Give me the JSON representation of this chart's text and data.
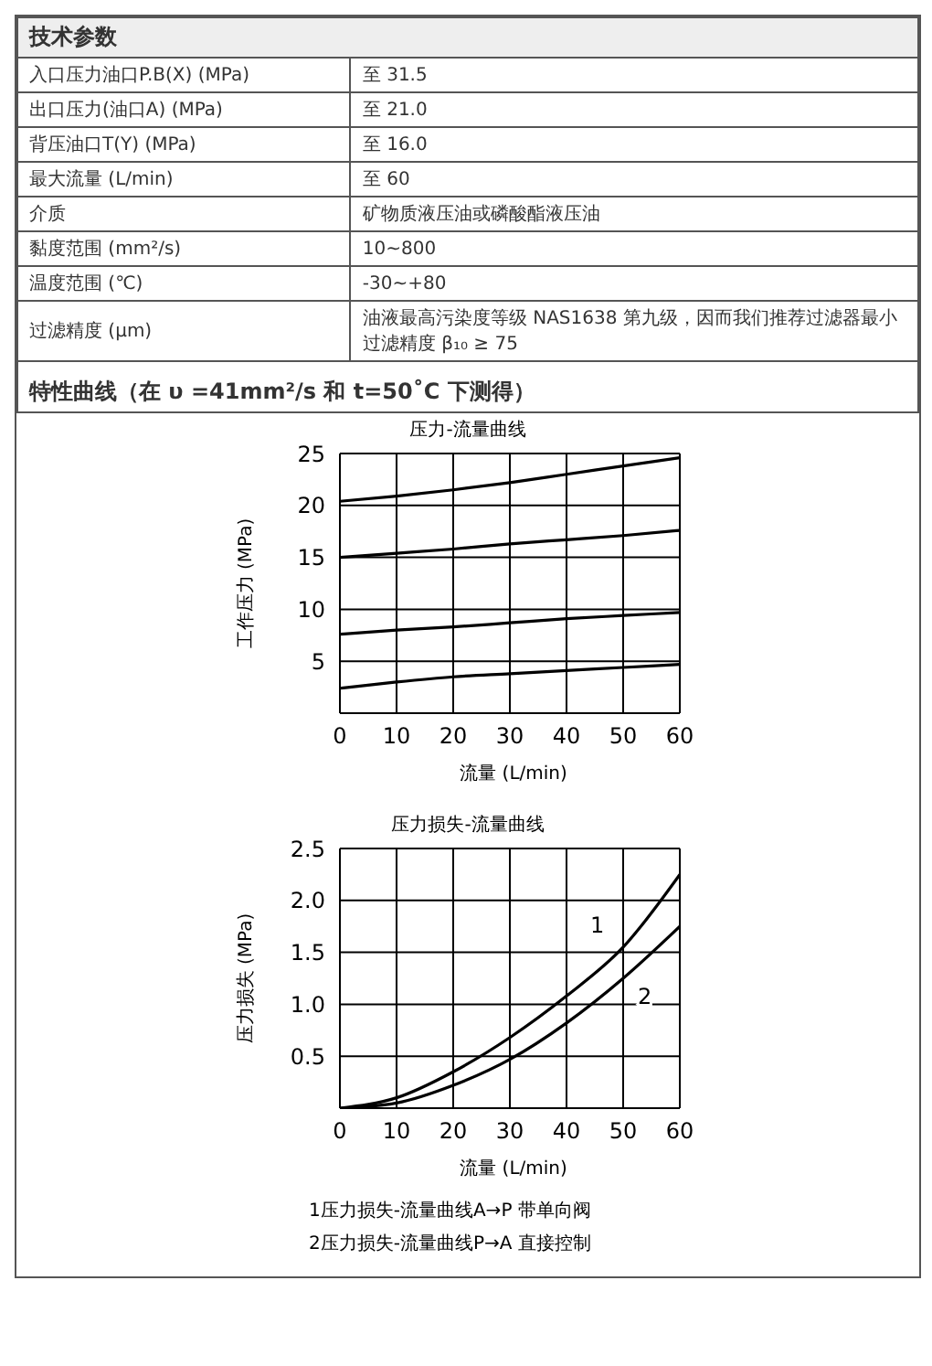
{
  "chart_data": [
    {
      "type": "other",
      "title": "技术参数",
      "annotations": [
        "入口压力油口P.B(X)  (MPa)",
        "至 31.5",
        "出口压力(油口A)  (MPa)",
        "至 21.0",
        "背压油口T(Y)  (MPa)",
        "至 16.0",
        "最大流量  (L/min)",
        "至 60",
        "介质",
        "矿物质液压油或磷酸酯液压油",
        "黏度范围  (mm²/s)",
        "10~800",
        "温度范围  (℃)",
        "-30~+80",
        "过滤精度  (μm)",
        "油液最高污染度等级 NAS1638 第九级，因而我们推荐过滤器最小过滤精度 β₁₀ ≥ 75",
        "特性曲线（在 υ =41mm²/s 和 t=50˚C 下测得）"
      ]
    },
    {
      "type": "line",
      "title": "压力-流量曲线",
      "xlabel": "流量 (L/min)",
      "ylabel": "工作压力 (MPa)",
      "x": [
        0,
        10,
        20,
        30,
        40,
        50,
        60
      ],
      "xlim": [
        0,
        60
      ],
      "xticks": [
        0,
        10,
        20,
        30,
        40,
        50,
        60
      ],
      "ylim": [
        0,
        25
      ],
      "yticks": [
        5,
        10,
        15,
        20,
        25
      ],
      "grid": true,
      "series": [
        {
          "color": "#000000",
          "values": [
            20.4,
            20.9,
            21.5,
            22.2,
            23.0,
            23.8,
            24.6
          ]
        },
        {
          "color": "#000000",
          "values": [
            15.0,
            15.4,
            15.8,
            16.3,
            16.7,
            17.1,
            17.6
          ]
        },
        {
          "color": "#000000",
          "values": [
            7.6,
            8.0,
            8.3,
            8.7,
            9.1,
            9.4,
            9.7
          ]
        },
        {
          "color": "#000000",
          "values": [
            2.4,
            3.0,
            3.5,
            3.8,
            4.1,
            4.4,
            4.7
          ]
        }
      ]
    },
    {
      "type": "line",
      "title": "压力损失-流量曲线",
      "xlabel": "流量 (L/min)",
      "ylabel": "压力损失 (MPa)",
      "x": [
        0,
        10,
        20,
        30,
        40,
        50,
        60
      ],
      "xlim": [
        0,
        60
      ],
      "xticks": [
        0,
        10,
        20,
        30,
        40,
        50,
        60
      ],
      "ylim": [
        0,
        2.5
      ],
      "yticks": [
        {
          "value": 0.5,
          "label": "0.5"
        },
        {
          "value": 1,
          "label": "1.0"
        },
        {
          "value": 1.5,
          "label": "1.5"
        },
        {
          "value": 2,
          "label": "2.0"
        },
        {
          "value": 2.5,
          "label": "2.5"
        }
      ],
      "grid": true,
      "series": [
        {
          "name": "1",
          "color": "#000000",
          "values": [
            0,
            0.1,
            0.35,
            0.68,
            1.08,
            1.55,
            2.25
          ]
        },
        {
          "name": "2",
          "color": "#000000",
          "values": [
            0,
            0.05,
            0.22,
            0.47,
            0.82,
            1.25,
            1.75
          ]
        }
      ],
      "annotations": [
        "1压力损失-流量曲线A→P 带单向阀",
        "2压力损失-流量曲线P→A 直接控制"
      ]
    }
  ]
}
